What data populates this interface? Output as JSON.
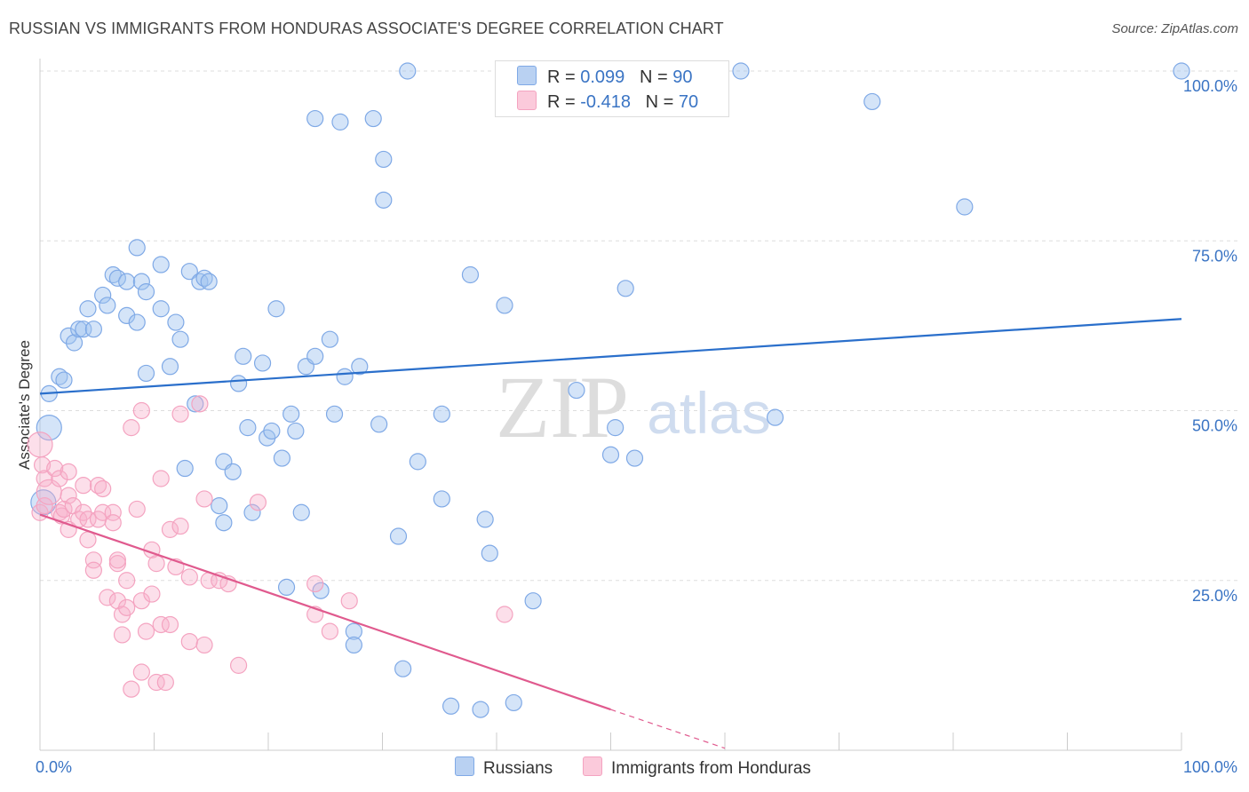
{
  "title": "RUSSIAN VS IMMIGRANTS FROM HONDURAS ASSOCIATE'S DEGREE CORRELATION CHART",
  "source": "Source: ZipAtlas.com",
  "watermark": {
    "zip": "ZIP",
    "atlas": "atlas"
  },
  "legend": {
    "rows": [
      {
        "r_label": "R = ",
        "r_value": "0.099",
        "n_label": "N = ",
        "n_value": "90"
      },
      {
        "r_label": "R = ",
        "r_value": "-0.418",
        "n_label": "N = ",
        "n_value": "70"
      }
    ]
  },
  "chart_data": {
    "type": "scatter",
    "xlabel": "",
    "ylabel": "Associate's Degree",
    "xlim": [
      0,
      100
    ],
    "ylim": [
      0,
      100
    ],
    "x_tick_labels": [
      {
        "value": 0,
        "label": "0.0%"
      },
      {
        "value": 100,
        "label": "100.0%"
      }
    ],
    "y_tick_labels": [
      {
        "value": 25,
        "label": "25.0%"
      },
      {
        "value": 50,
        "label": "50.0%"
      },
      {
        "value": 75,
        "label": "75.0%"
      },
      {
        "value": 100,
        "label": "100.0%"
      }
    ],
    "grid": "horizontal dashed",
    "legend_position": "top-center",
    "colors": {
      "Russians": "#7fa9e6",
      "Immigrants from Honduras": "#f4a3c0",
      "russians_line": "#2a6fcb",
      "honduras_line": "#e05a8e"
    },
    "series": [
      {
        "name": "Russians",
        "points": [
          [
            0.3,
            36.5
          ],
          [
            0.8,
            47.5
          ],
          [
            0.8,
            52.5
          ],
          [
            1.7,
            55.0
          ],
          [
            2.1,
            54.5
          ],
          [
            2.5,
            61.0
          ],
          [
            3.0,
            60.0
          ],
          [
            3.4,
            62.0
          ],
          [
            3.8,
            62.0
          ],
          [
            4.7,
            62.0
          ],
          [
            4.2,
            65.0
          ],
          [
            5.5,
            67.0
          ],
          [
            5.9,
            65.5
          ],
          [
            6.4,
            70.0
          ],
          [
            6.8,
            69.5
          ],
          [
            7.6,
            64.0
          ],
          [
            7.6,
            69.0
          ],
          [
            8.5,
            74.0
          ],
          [
            8.5,
            63.0
          ],
          [
            8.9,
            69.0
          ],
          [
            9.3,
            67.5
          ],
          [
            9.3,
            55.5
          ],
          [
            10.6,
            71.5
          ],
          [
            10.6,
            65.0
          ],
          [
            11.4,
            56.5
          ],
          [
            11.9,
            63.0
          ],
          [
            12.3,
            60.5
          ],
          [
            12.7,
            41.5
          ],
          [
            13.1,
            70.5
          ],
          [
            13.6,
            51.0
          ],
          [
            14.0,
            69.0
          ],
          [
            14.4,
            69.5
          ],
          [
            14.8,
            69.0
          ],
          [
            15.7,
            36.0
          ],
          [
            16.1,
            33.5
          ],
          [
            16.1,
            42.5
          ],
          [
            16.9,
            41.0
          ],
          [
            17.4,
            54.0
          ],
          [
            17.8,
            58.0
          ],
          [
            18.2,
            47.5
          ],
          [
            18.6,
            35.0
          ],
          [
            19.5,
            57.0
          ],
          [
            19.9,
            46.0
          ],
          [
            20.3,
            47.0
          ],
          [
            20.7,
            65.0
          ],
          [
            21.2,
            43.0
          ],
          [
            21.6,
            24.0
          ],
          [
            22.0,
            49.5
          ],
          [
            22.4,
            47.0
          ],
          [
            22.9,
            35.0
          ],
          [
            23.3,
            56.5
          ],
          [
            24.1,
            58.0
          ],
          [
            24.1,
            93.0
          ],
          [
            24.6,
            23.5
          ],
          [
            25.4,
            60.5
          ],
          [
            25.8,
            49.5
          ],
          [
            26.3,
            92.5
          ],
          [
            26.7,
            55.0
          ],
          [
            27.5,
            17.5
          ],
          [
            27.5,
            15.5
          ],
          [
            28.0,
            56.5
          ],
          [
            29.2,
            93.0
          ],
          [
            29.7,
            48.0
          ],
          [
            30.1,
            87.0
          ],
          [
            30.1,
            81.0
          ],
          [
            31.4,
            31.5
          ],
          [
            31.8,
            12.0
          ],
          [
            32.2,
            100.0
          ],
          [
            33.1,
            42.5
          ],
          [
            35.2,
            49.5
          ],
          [
            35.2,
            37.0
          ],
          [
            36.0,
            6.5
          ],
          [
            37.7,
            70.0
          ],
          [
            38.6,
            6.0
          ],
          [
            39.0,
            34.0
          ],
          [
            39.4,
            29.0
          ],
          [
            40.7,
            65.5
          ],
          [
            41.5,
            7.0
          ],
          [
            43.2,
            22.0
          ],
          [
            47.0,
            53.0
          ],
          [
            50.0,
            43.5
          ],
          [
            50.4,
            47.5
          ],
          [
            51.3,
            68.0
          ],
          [
            52.1,
            43.0
          ],
          [
            59.3,
            100.0
          ],
          [
            61.4,
            100.0
          ],
          [
            64.4,
            49.0
          ],
          [
            72.9,
            95.5
          ],
          [
            81.0,
            80.0
          ],
          [
            100.0,
            100.0
          ]
        ]
      },
      {
        "name": "Immigrants from Honduras",
        "points": [
          [
            0.0,
            45.0
          ],
          [
            0.0,
            35.0
          ],
          [
            0.2,
            42.0
          ],
          [
            0.4,
            40.0
          ],
          [
            0.4,
            36.0
          ],
          [
            0.8,
            38.0
          ],
          [
            1.3,
            41.5
          ],
          [
            1.7,
            35.0
          ],
          [
            1.7,
            40.0
          ],
          [
            1.9,
            34.5
          ],
          [
            2.1,
            35.5
          ],
          [
            2.5,
            37.5
          ],
          [
            2.5,
            41.0
          ],
          [
            2.5,
            32.5
          ],
          [
            2.9,
            36.0
          ],
          [
            3.4,
            34.0
          ],
          [
            3.8,
            39.0
          ],
          [
            3.8,
            35.0
          ],
          [
            4.2,
            34.0
          ],
          [
            4.2,
            31.0
          ],
          [
            4.7,
            28.0
          ],
          [
            4.7,
            26.5
          ],
          [
            5.1,
            34.0
          ],
          [
            5.1,
            39.0
          ],
          [
            5.5,
            35.0
          ],
          [
            5.5,
            38.5
          ],
          [
            5.9,
            22.5
          ],
          [
            6.4,
            35.0
          ],
          [
            6.4,
            33.5
          ],
          [
            6.8,
            22.0
          ],
          [
            6.8,
            27.5
          ],
          [
            6.8,
            28.0
          ],
          [
            7.2,
            20.0
          ],
          [
            7.2,
            17.0
          ],
          [
            7.6,
            21.0
          ],
          [
            7.6,
            25.0
          ],
          [
            8.0,
            47.5
          ],
          [
            8.0,
            9.0
          ],
          [
            8.5,
            35.5
          ],
          [
            8.9,
            11.5
          ],
          [
            8.9,
            50.0
          ],
          [
            8.9,
            22.0
          ],
          [
            9.3,
            17.5
          ],
          [
            9.8,
            23.0
          ],
          [
            9.8,
            29.5
          ],
          [
            10.2,
            27.5
          ],
          [
            10.2,
            10.0
          ],
          [
            10.6,
            18.5
          ],
          [
            10.6,
            40.0
          ],
          [
            11.0,
            10.0
          ],
          [
            11.4,
            32.5
          ],
          [
            11.4,
            18.5
          ],
          [
            11.9,
            27.0
          ],
          [
            12.3,
            49.5
          ],
          [
            12.3,
            33.0
          ],
          [
            13.1,
            25.5
          ],
          [
            13.1,
            16.0
          ],
          [
            14.0,
            51.0
          ],
          [
            14.4,
            15.5
          ],
          [
            14.4,
            37.0
          ],
          [
            14.8,
            25.0
          ],
          [
            15.7,
            25.0
          ],
          [
            16.5,
            24.5
          ],
          [
            17.4,
            12.5
          ],
          [
            19.1,
            36.5
          ],
          [
            24.1,
            20.0
          ],
          [
            24.1,
            24.5
          ],
          [
            25.4,
            17.5
          ],
          [
            27.1,
            22.0
          ],
          [
            40.7,
            20.0
          ]
        ]
      }
    ],
    "trend_lines": [
      {
        "series": "Russians",
        "x": [
          0,
          100
        ],
        "y": [
          52.5,
          63.5
        ]
      },
      {
        "series": "Immigrants from Honduras",
        "x": [
          0,
          50
        ],
        "y": [
          34.7,
          6.0
        ]
      },
      {
        "series": "Immigrants from Honduras",
        "style": "dashed",
        "x": [
          50,
          60
        ],
        "y": [
          6.0,
          0.3
        ]
      }
    ]
  },
  "bottom_legend": [
    {
      "label": "Russians"
    },
    {
      "label": "Immigrants from Honduras"
    }
  ]
}
